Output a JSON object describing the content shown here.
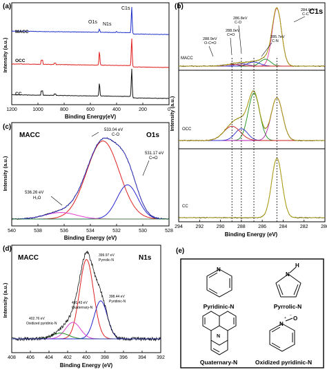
{
  "chart_data": [
    {
      "panel": "(a)",
      "type": "line",
      "xlabel": "Binding Energy(eV)",
      "ylabel": "Intensity (a.u.)",
      "xlim": [
        1200,
        0
      ],
      "x_ticks": [
        "1200",
        "1000",
        "800",
        "600",
        "400",
        "200",
        "0"
      ],
      "peak_labels": [
        "O1s",
        "N1s",
        "C1s"
      ],
      "series": [
        {
          "name": "MACC",
          "color": "#1c2fc8",
          "peaks": [
            {
              "x": 531,
              "h": 0.12
            },
            {
              "x": 400,
              "h": 0.04
            },
            {
              "x": 284.6,
              "h": 1.0
            }
          ]
        },
        {
          "name": "OCC",
          "color": "#e01b1b",
          "peaks": [
            {
              "x": 531,
              "h": 0.5
            },
            {
              "x": 284.6,
              "h": 1.0
            }
          ]
        },
        {
          "name": "CC",
          "color": "#111111",
          "peaks": [
            {
              "x": 531,
              "h": 0.45
            },
            {
              "x": 284.6,
              "h": 1.0
            }
          ]
        }
      ]
    },
    {
      "panel": "(b)",
      "type": "line",
      "title": "C1s",
      "xlabel": "Binding Energy (eV)",
      "ylabel": "Intensity (a.u.)",
      "xlim": [
        294,
        280
      ],
      "x_ticks": [
        "294",
        "292",
        "290",
        "288",
        "286",
        "284",
        "282",
        "280"
      ],
      "reference_lines": [
        288.9,
        288.0,
        286.8,
        284.6
      ],
      "annotations": [
        {
          "line1": "288.9eV",
          "line2": "O-C=O",
          "x": 288.9
        },
        {
          "line1": "288.0eV",
          "line2": "C=O",
          "x": 288.0
        },
        {
          "line1": "286.8eV",
          "line2": "C-O",
          "x": 286.8
        },
        {
          "line1": "285.7eV",
          "line2": "C-N",
          "x": 285.7
        },
        {
          "line1": "284.6eV",
          "line2": "C-C",
          "x": 284.6
        }
      ],
      "sub_labels": [
        "MACC",
        "OCC",
        "CC"
      ],
      "components_MACC": [
        {
          "center": 284.6,
          "height": 1.0,
          "width": 0.45,
          "color": "#e03aa0"
        },
        {
          "center": 285.7,
          "height": 0.12,
          "width": 0.5,
          "color": "#1a8c1a"
        },
        {
          "center": 286.8,
          "height": 0.07,
          "width": 0.6,
          "color": "#2a2ad0"
        },
        {
          "center": 288.0,
          "height": 0.04,
          "width": 0.6,
          "color": "#5b2a8a"
        },
        {
          "center": 288.9,
          "height": 0.03,
          "width": 0.7,
          "color": "#c81e1e"
        }
      ],
      "components_OCC": [
        {
          "center": 286.8,
          "height": 0.8,
          "width": 0.55,
          "color": "#1a8c1a"
        },
        {
          "center": 284.6,
          "height": 0.72,
          "width": 0.55,
          "color": "#b21eb2"
        },
        {
          "center": 288.0,
          "height": 0.2,
          "width": 0.6,
          "color": "#2a2ad0"
        },
        {
          "center": 288.9,
          "height": 0.24,
          "width": 0.8,
          "color": "#c81e1e"
        }
      ],
      "components_CC": [
        {
          "center": 284.6,
          "height": 1.0,
          "width": 0.5,
          "color": "#111111"
        }
      ]
    },
    {
      "panel": "(c)",
      "type": "line",
      "title": "O1s",
      "sample": "MACC",
      "xlabel": "Binding Energy (eV)",
      "ylabel": "Intensity (a.u.)",
      "xlim": [
        540,
        528
      ],
      "x_ticks": [
        "540",
        "538",
        "536",
        "534",
        "532",
        "530",
        "528"
      ],
      "components": [
        {
          "center": 533.04,
          "height": 0.96,
          "width": 1.25,
          "color": "#e02020",
          "line1": "533.04 eV",
          "line2": "C-O"
        },
        {
          "center": 531.17,
          "height": 0.42,
          "width": 0.8,
          "color": "#2323d0",
          "line1": "531.17 eV",
          "line2": "C=O"
        },
        {
          "center": 536.26,
          "height": 0.08,
          "width": 1.2,
          "color": "#e03ad0",
          "line1": "536.26 eV",
          "line2": "H₂O"
        }
      ]
    },
    {
      "panel": "(d)",
      "type": "line",
      "title": "N1s",
      "sample": "MACC",
      "xlabel": "Binding Energy (eV)",
      "ylabel": "Intensity (a.u.)",
      "xlim": [
        408,
        392
      ],
      "x_ticks": [
        "408",
        "406",
        "404",
        "402",
        "400",
        "398",
        "396",
        "394",
        "392"
      ],
      "components": [
        {
          "center": 399.97,
          "height": 0.96,
          "width": 0.75,
          "color": "#e02020",
          "line1": "399.97 eV",
          "line2": "Pyrrolic-N"
        },
        {
          "center": 398.44,
          "height": 0.46,
          "width": 0.7,
          "color": "#2323d0",
          "line1": "398.44 eV",
          "line2": "Pyridinic-N"
        },
        {
          "center": 401.43,
          "height": 0.2,
          "width": 0.8,
          "color": "#e03ad0",
          "line1": "401.43 eV",
          "line2": "Quaternary-N"
        },
        {
          "center": 402.76,
          "height": 0.07,
          "width": 0.9,
          "color": "#1a8c1a",
          "line1": "402.76 eV",
          "line2": "Oxidized pyridinic-N"
        }
      ]
    }
  ],
  "structures_panel": {
    "panel": "(e)",
    "items": [
      {
        "label": "Pyridinic-N",
        "atom": "N"
      },
      {
        "label": "Pyrrolic-N",
        "atom": "N",
        "extra": "H"
      },
      {
        "label": "Quaternary-N",
        "atom": "N"
      },
      {
        "label": "Oxidized pyridinic-N",
        "atom": "N",
        "extra": "O"
      }
    ]
  }
}
